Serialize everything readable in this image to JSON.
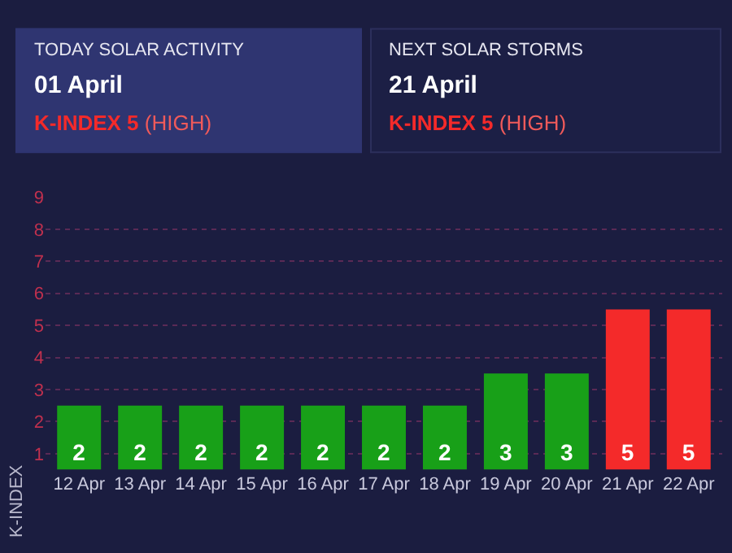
{
  "chart_data": [
    {
      "type": "other",
      "title": "TODAY SOLAR ACTIVITY",
      "subtitle": "01 April",
      "annotations": [
        "K-INDEX 5",
        "(HIGH)"
      ]
    },
    {
      "type": "other",
      "title": "NEXT SOLAR STORMS",
      "subtitle": "21 April",
      "annotations": [
        "K-INDEX 5",
        "(HIGH)"
      ]
    },
    {
      "type": "bar",
      "categories": [
        "12 Apr",
        "13 Apr",
        "14 Apr",
        "15 Apr",
        "16 Apr",
        "17 Apr",
        "18 Apr",
        "19 Apr",
        "20 Apr",
        "21 Apr",
        "22 Apr"
      ],
      "values": [
        2,
        2,
        2,
        2,
        2,
        2,
        2,
        3,
        3,
        5,
        5
      ],
      "colors": [
        "#18a018",
        "#18a018",
        "#18a018",
        "#18a018",
        "#18a018",
        "#18a018",
        "#18a018",
        "#18a018",
        "#18a018",
        "#f42a2a",
        "#f42a2a"
      ],
      "ylim": [
        0,
        8.5
      ],
      "yticks": [
        {
          "value": 0.5,
          "label": "1"
        },
        {
          "value": 1.5,
          "label": "2"
        },
        {
          "value": 2.5,
          "label": "3"
        },
        {
          "value": 3.5,
          "label": "4"
        },
        {
          "value": 4.5,
          "label": "5"
        },
        {
          "value": 5.5,
          "label": "6"
        },
        {
          "value": 6.5,
          "label": "7"
        },
        {
          "value": 7.5,
          "label": "8"
        },
        {
          "value": 8.5,
          "label": "9"
        }
      ],
      "ylabel": "K-INDEX",
      "grid": "y",
      "data_labels": true
    }
  ]
}
